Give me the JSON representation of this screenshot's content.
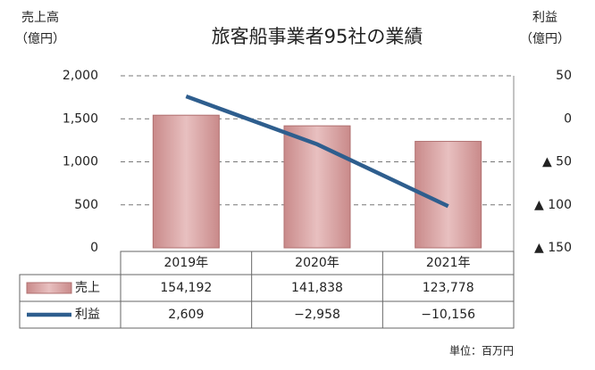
{
  "chart_data": {
    "type": "bar",
    "title": "旅客船事業者95社の業績",
    "y_label": [
      "売上高",
      "（億円）"
    ],
    "y2_label": [
      "利益",
      "（億円）"
    ],
    "note": "単位：百万円",
    "categories": [
      "2019年",
      "2020年",
      "2021年"
    ],
    "series": [
      {
        "name": "売上",
        "color": "#d8a4a4",
        "values": [
          1541.92,
          1418.38,
          1237.78
        ],
        "value_labels": [
          "154,192",
          "141,838",
          "123,778"
        ]
      },
      {
        "name": "利益",
        "type": "line",
        "axis": "y2",
        "color": "#2e5e8e",
        "values": [
          26.09,
          -29.58,
          -101.56
        ],
        "value_labels": [
          "2,609",
          "−2,958",
          "−10,156"
        ]
      }
    ],
    "ylim": [
      0,
      2000
    ],
    "yticks": [
      0,
      500,
      {
        "value": 1000,
        "label": "1,000"
      },
      {
        "value": 1500,
        "label": "1,500"
      },
      {
        "value": 2000,
        "label": "2,000"
      }
    ],
    "y2lim": [
      -150,
      50
    ],
    "y2ticks": [
      {
        "value": -150,
        "label": "▲ 150"
      },
      {
        "value": -100,
        "label": "▲ 100"
      },
      {
        "value": -50,
        "label": "▲ 50"
      },
      0,
      50
    ],
    "grid": true
  }
}
